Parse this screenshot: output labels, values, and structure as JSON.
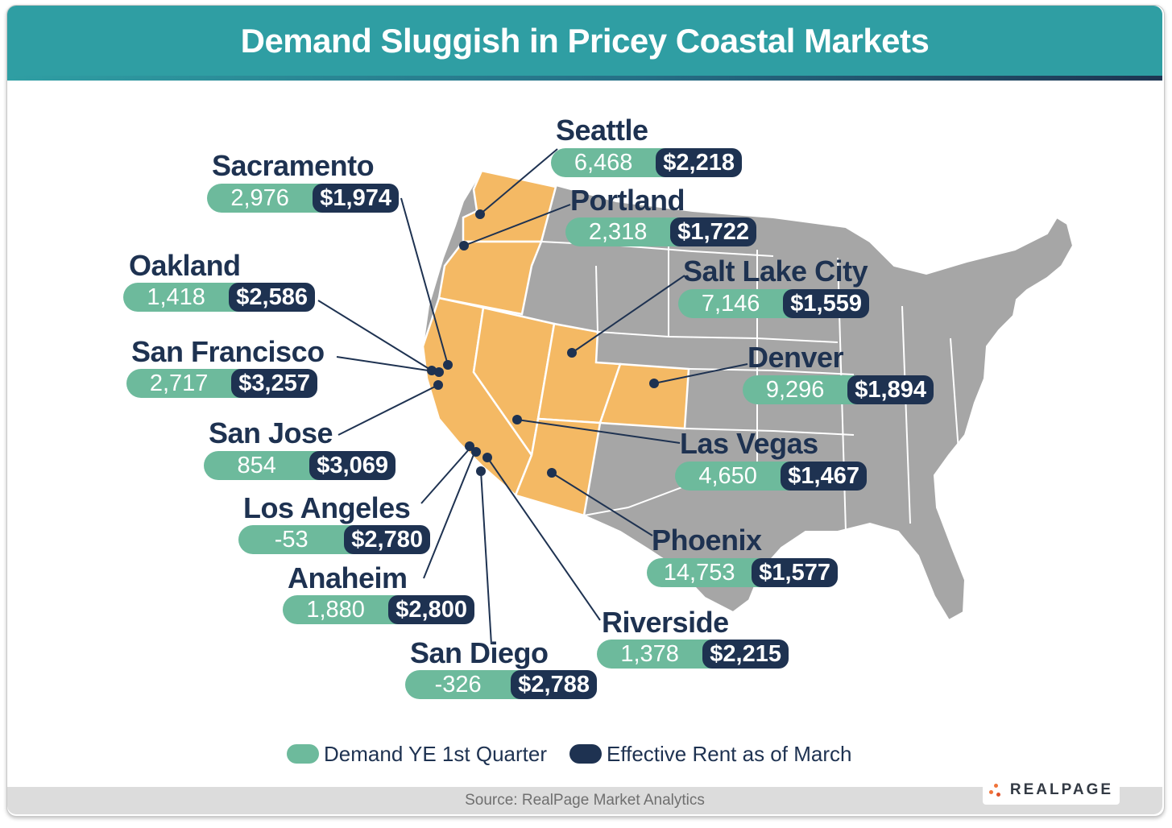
{
  "title": "Demand Sluggish in Pricey Coastal Markets",
  "legend": {
    "demand": {
      "label": "Demand YE 1st Quarter",
      "color": "#6dba9c"
    },
    "rent": {
      "label": "Effective Rent as of March",
      "color": "#1e3251"
    }
  },
  "source": "Source: RealPage Market Analytics",
  "brand": "REALPAGE",
  "colors": {
    "highlight_states": "#f4b964",
    "other_states": "#a6a6a6",
    "title_bar": "#2f9ea3",
    "text": "#1e3251"
  },
  "markets": [
    {
      "name": "Seattle",
      "demand": "6,468",
      "rent": "$2,218"
    },
    {
      "name": "Portland",
      "demand": "2,318",
      "rent": "$1,722"
    },
    {
      "name": "Sacramento",
      "demand": "2,976",
      "rent": "$1,974"
    },
    {
      "name": "Oakland",
      "demand": "1,418",
      "rent": "$2,586"
    },
    {
      "name": "Salt Lake City",
      "demand": "7,146",
      "rent": "$1,559"
    },
    {
      "name": "San Francisco",
      "demand": "2,717",
      "rent": "$3,257"
    },
    {
      "name": "Denver",
      "demand": "9,296",
      "rent": "$1,894"
    },
    {
      "name": "San Jose",
      "demand": "854",
      "rent": "$3,069"
    },
    {
      "name": "Las Vegas",
      "demand": "4,650",
      "rent": "$1,467"
    },
    {
      "name": "Los Angeles",
      "demand": "-53",
      "rent": "$2,780"
    },
    {
      "name": "Phoenix",
      "demand": "14,753",
      "rent": "$1,577"
    },
    {
      "name": "Anaheim",
      "demand": "1,880",
      "rent": "$2,800"
    },
    {
      "name": "Riverside",
      "demand": "1,378",
      "rent": "$2,215"
    },
    {
      "name": "San Diego",
      "demand": "-326",
      "rent": "$2,788"
    }
  ]
}
